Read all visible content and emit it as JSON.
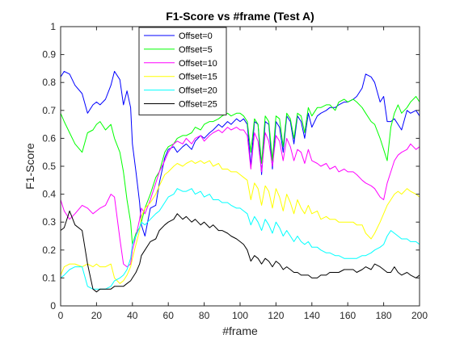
{
  "chart_data": {
    "type": "line",
    "title": "F1-Score vs #frame (Test A)",
    "xlabel": "#frame",
    "ylabel": "F1-Score",
    "xlim": [
      0,
      200
    ],
    "ylim": [
      0,
      1
    ],
    "xticks": [
      0,
      20,
      40,
      60,
      80,
      100,
      120,
      140,
      160,
      180,
      200
    ],
    "yticks": [
      0,
      0.1,
      0.2,
      0.3,
      0.4,
      0.5,
      0.6,
      0.7,
      0.8,
      0.9,
      1
    ],
    "grid": false,
    "legend_position": "top-left",
    "x": [
      0,
      2,
      5,
      8,
      12,
      15,
      18,
      20,
      22,
      25,
      28,
      30,
      33,
      35,
      37,
      39,
      40,
      42,
      44,
      45,
      47,
      50,
      53,
      55,
      58,
      60,
      63,
      65,
      68,
      70,
      73,
      75,
      78,
      80,
      83,
      85,
      88,
      90,
      93,
      95,
      98,
      100,
      102,
      104,
      106,
      108,
      110,
      112,
      114,
      116,
      118,
      120,
      122,
      124,
      126,
      128,
      130,
      132,
      134,
      136,
      138,
      140,
      143,
      145,
      148,
      150,
      153,
      155,
      158,
      160,
      163,
      165,
      168,
      170,
      173,
      175,
      178,
      180,
      182,
      184,
      186,
      188,
      190,
      193,
      195,
      198,
      200
    ],
    "series": [
      {
        "name": "Offset=0",
        "color": "#0000ff",
        "values": [
          0.82,
          0.84,
          0.83,
          0.79,
          0.76,
          0.69,
          0.72,
          0.73,
          0.72,
          0.74,
          0.79,
          0.84,
          0.81,
          0.72,
          0.77,
          0.71,
          0.58,
          0.48,
          0.37,
          0.29,
          0.25,
          0.35,
          0.36,
          0.44,
          0.53,
          0.56,
          0.57,
          0.55,
          0.57,
          0.58,
          0.56,
          0.59,
          0.61,
          0.6,
          0.62,
          0.63,
          0.65,
          0.64,
          0.66,
          0.65,
          0.67,
          0.66,
          0.67,
          0.65,
          0.5,
          0.66,
          0.65,
          0.47,
          0.66,
          0.65,
          0.49,
          0.66,
          0.64,
          0.55,
          0.68,
          0.66,
          0.58,
          0.68,
          0.66,
          0.6,
          0.69,
          0.64,
          0.68,
          0.69,
          0.7,
          0.71,
          0.71,
          0.72,
          0.73,
          0.73,
          0.74,
          0.75,
          0.78,
          0.83,
          0.82,
          0.8,
          0.73,
          0.75,
          0.66,
          0.66,
          0.67,
          0.65,
          0.63,
          0.7,
          0.69,
          0.7,
          0.68
        ]
      },
      {
        "name": "Offset=5",
        "color": "#00ff00",
        "values": [
          0.69,
          0.66,
          0.62,
          0.58,
          0.55,
          0.62,
          0.63,
          0.65,
          0.66,
          0.63,
          0.65,
          0.6,
          0.55,
          0.48,
          0.38,
          0.3,
          0.22,
          0.26,
          0.28,
          0.3,
          0.35,
          0.4,
          0.46,
          0.48,
          0.55,
          0.57,
          0.58,
          0.6,
          0.61,
          0.61,
          0.62,
          0.64,
          0.63,
          0.65,
          0.66,
          0.66,
          0.67,
          0.68,
          0.69,
          0.68,
          0.69,
          0.69,
          0.68,
          0.66,
          0.55,
          0.67,
          0.65,
          0.51,
          0.68,
          0.66,
          0.52,
          0.68,
          0.67,
          0.57,
          0.69,
          0.67,
          0.6,
          0.69,
          0.68,
          0.62,
          0.71,
          0.68,
          0.71,
          0.71,
          0.72,
          0.72,
          0.7,
          0.73,
          0.74,
          0.73,
          0.74,
          0.73,
          0.71,
          0.69,
          0.66,
          0.65,
          0.6,
          0.56,
          0.52,
          0.64,
          0.69,
          0.72,
          0.69,
          0.71,
          0.73,
          0.75,
          0.73
        ]
      },
      {
        "name": "Offset=10",
        "color": "#ff00ff",
        "values": [
          0.38,
          0.34,
          0.31,
          0.33,
          0.36,
          0.35,
          0.33,
          0.34,
          0.35,
          0.36,
          0.4,
          0.39,
          0.24,
          0.15,
          0.14,
          0.15,
          0.2,
          0.25,
          0.31,
          0.35,
          0.33,
          0.38,
          0.44,
          0.48,
          0.52,
          0.55,
          0.58,
          0.59,
          0.58,
          0.6,
          0.58,
          0.6,
          0.61,
          0.59,
          0.61,
          0.62,
          0.63,
          0.62,
          0.64,
          0.63,
          0.64,
          0.63,
          0.63,
          0.61,
          0.49,
          0.62,
          0.59,
          0.48,
          0.62,
          0.59,
          0.5,
          0.61,
          0.59,
          0.52,
          0.6,
          0.57,
          0.52,
          0.56,
          0.55,
          0.51,
          0.56,
          0.52,
          0.51,
          0.5,
          0.51,
          0.49,
          0.5,
          0.48,
          0.49,
          0.48,
          0.48,
          0.47,
          0.45,
          0.44,
          0.43,
          0.42,
          0.39,
          0.38,
          0.44,
          0.48,
          0.52,
          0.54,
          0.55,
          0.56,
          0.58,
          0.56,
          0.57
        ]
      },
      {
        "name": "Offset=15",
        "color": "#ffff00",
        "values": [
          0.11,
          0.14,
          0.15,
          0.15,
          0.14,
          0.15,
          0.14,
          0.15,
          0.14,
          0.14,
          0.15,
          0.1,
          0.08,
          0.09,
          0.11,
          0.14,
          0.17,
          0.22,
          0.27,
          0.32,
          0.35,
          0.37,
          0.4,
          0.43,
          0.47,
          0.48,
          0.5,
          0.51,
          0.5,
          0.51,
          0.52,
          0.51,
          0.52,
          0.51,
          0.52,
          0.5,
          0.51,
          0.49,
          0.49,
          0.48,
          0.48,
          0.47,
          0.46,
          0.45,
          0.38,
          0.44,
          0.42,
          0.36,
          0.43,
          0.41,
          0.35,
          0.42,
          0.39,
          0.34,
          0.4,
          0.37,
          0.33,
          0.38,
          0.35,
          0.33,
          0.36,
          0.33,
          0.34,
          0.31,
          0.32,
          0.31,
          0.31,
          0.3,
          0.3,
          0.3,
          0.3,
          0.29,
          0.29,
          0.26,
          0.24,
          0.26,
          0.3,
          0.33,
          0.36,
          0.38,
          0.4,
          0.41,
          0.4,
          0.42,
          0.41,
          0.4,
          0.39
        ]
      },
      {
        "name": "Offset=20",
        "color": "#00ffff",
        "values": [
          0.1,
          0.11,
          0.13,
          0.14,
          0.14,
          0.07,
          0.06,
          0.06,
          0.06,
          0.06,
          0.07,
          0.09,
          0.1,
          0.11,
          0.13,
          0.17,
          0.22,
          0.25,
          0.28,
          0.3,
          0.29,
          0.31,
          0.33,
          0.34,
          0.37,
          0.39,
          0.4,
          0.42,
          0.41,
          0.41,
          0.42,
          0.4,
          0.41,
          0.39,
          0.4,
          0.38,
          0.38,
          0.37,
          0.37,
          0.36,
          0.35,
          0.35,
          0.34,
          0.33,
          0.29,
          0.32,
          0.3,
          0.27,
          0.31,
          0.29,
          0.26,
          0.3,
          0.28,
          0.25,
          0.27,
          0.25,
          0.23,
          0.25,
          0.23,
          0.22,
          0.23,
          0.21,
          0.21,
          0.2,
          0.19,
          0.19,
          0.18,
          0.18,
          0.17,
          0.17,
          0.17,
          0.17,
          0.18,
          0.18,
          0.19,
          0.2,
          0.21,
          0.22,
          0.25,
          0.27,
          0.26,
          0.25,
          0.24,
          0.24,
          0.23,
          0.23,
          0.22
        ]
      },
      {
        "name": "Offset=25",
        "color": "#000000",
        "values": [
          0.27,
          0.28,
          0.34,
          0.29,
          0.27,
          0.15,
          0.06,
          0.05,
          0.06,
          0.06,
          0.06,
          0.07,
          0.07,
          0.07,
          0.08,
          0.09,
          0.1,
          0.12,
          0.15,
          0.18,
          0.2,
          0.23,
          0.24,
          0.27,
          0.29,
          0.3,
          0.31,
          0.33,
          0.31,
          0.32,
          0.3,
          0.31,
          0.29,
          0.3,
          0.28,
          0.29,
          0.27,
          0.27,
          0.26,
          0.25,
          0.24,
          0.23,
          0.22,
          0.2,
          0.16,
          0.18,
          0.17,
          0.15,
          0.17,
          0.16,
          0.14,
          0.16,
          0.15,
          0.13,
          0.14,
          0.13,
          0.12,
          0.12,
          0.11,
          0.11,
          0.11,
          0.1,
          0.1,
          0.11,
          0.11,
          0.12,
          0.12,
          0.12,
          0.13,
          0.13,
          0.13,
          0.12,
          0.13,
          0.14,
          0.13,
          0.15,
          0.14,
          0.13,
          0.12,
          0.12,
          0.14,
          0.12,
          0.11,
          0.12,
          0.11,
          0.1,
          0.11
        ]
      }
    ]
  }
}
